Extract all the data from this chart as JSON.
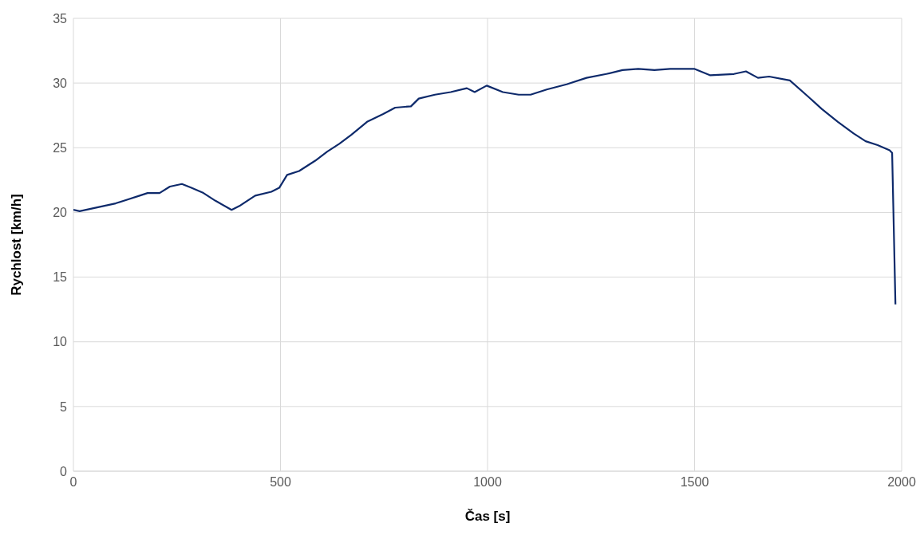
{
  "chart_data": {
    "type": "line",
    "xlabel": "Čas [s]",
    "ylabel": "Rychlost [km/h]",
    "xlim": [
      0,
      2000
    ],
    "xticks": [
      0,
      500,
      1000,
      1500,
      2000
    ],
    "ylim": [
      0,
      35
    ],
    "yticks": [
      0,
      5,
      10,
      15,
      20,
      25,
      30,
      35
    ],
    "grid": true,
    "x": [
      0,
      15,
      44,
      73,
      102,
      131,
      160,
      179,
      208,
      233,
      262,
      285,
      314,
      343,
      382,
      401,
      439,
      478,
      497,
      516,
      545,
      584,
      613,
      642,
      671,
      709,
      748,
      777,
      815,
      834,
      873,
      911,
      950,
      969,
      998,
      1037,
      1075,
      1104,
      1143,
      1191,
      1239,
      1287,
      1326,
      1364,
      1403,
      1441,
      1499,
      1538,
      1595,
      1624,
      1653,
      1680,
      1730,
      1769,
      1807,
      1846,
      1884,
      1913,
      1942,
      1971,
      1977,
      1985
    ],
    "series": [
      {
        "color": "#0e2a6b",
        "values": [
          20.2,
          20.1,
          20.3,
          20.5,
          20.7,
          21.0,
          21.3,
          21.5,
          21.5,
          22.0,
          22.2,
          21.9,
          21.5,
          20.9,
          20.2,
          20.5,
          21.3,
          21.6,
          21.9,
          22.9,
          23.2,
          24.0,
          24.7,
          25.3,
          26.0,
          27.0,
          27.6,
          28.1,
          28.2,
          28.8,
          29.1,
          29.3,
          29.6,
          29.3,
          29.8,
          29.3,
          29.1,
          29.1,
          29.5,
          29.9,
          30.4,
          30.7,
          31.0,
          31.1,
          31.0,
          31.1,
          31.1,
          30.6,
          30.7,
          30.9,
          30.4,
          30.5,
          30.2,
          29.1,
          28.0,
          27.0,
          26.1,
          25.5,
          25.2,
          24.8,
          24.6,
          12.9
        ]
      }
    ]
  }
}
